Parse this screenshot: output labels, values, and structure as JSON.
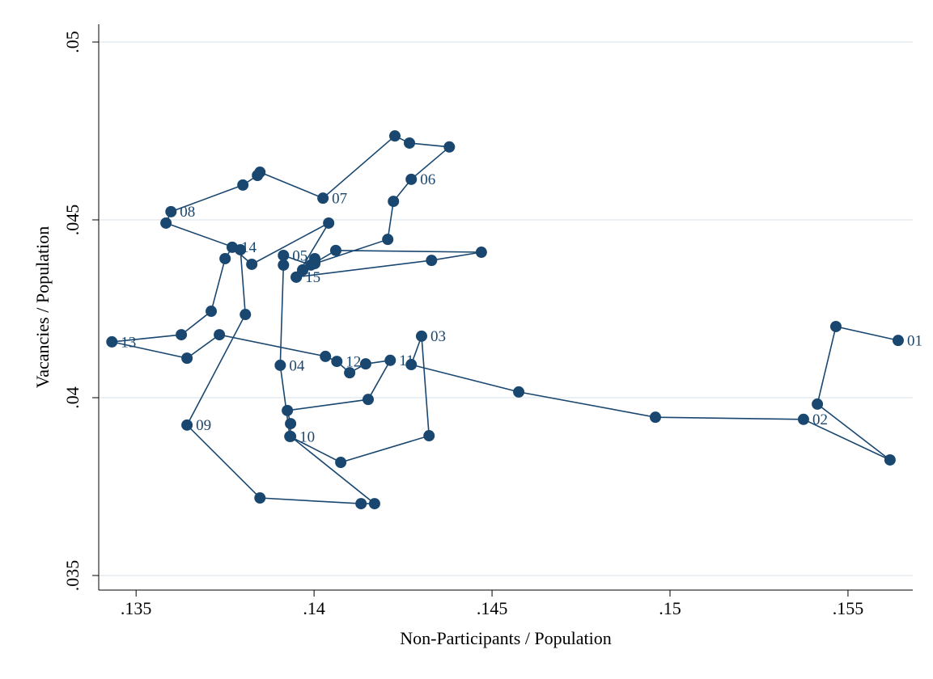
{
  "chart_data": {
    "type": "connected-scatter",
    "x_label": "Non-Participants / Population",
    "y_label": "Vacancies / Population",
    "color": "#1a476f",
    "grid": true,
    "xlim": [
      0.13395,
      0.15682
    ],
    "ylim": [
      0.03459,
      0.0505
    ],
    "xticks": [
      {
        "value": 0.135,
        "label": ".135"
      },
      {
        "value": 0.14,
        "label": ".14"
      },
      {
        "value": 0.145,
        "label": ".145"
      },
      {
        "value": 0.15,
        "label": ".15"
      },
      {
        "value": 0.155,
        "label": ".155"
      }
    ],
    "yticks": [
      {
        "value": 0.035,
        "label": ".035"
      },
      {
        "value": 0.04,
        "label": ".04"
      },
      {
        "value": 0.045,
        "label": ".045"
      },
      {
        "value": 0.05,
        "label": ".05"
      }
    ],
    "x": [
      0.15641,
      0.15466,
      0.15414,
      0.15618,
      0.15375,
      0.14959,
      0.14575,
      0.14273,
      0.14302,
      0.14323,
      0.14075,
      0.13932,
      0.13905,
      0.13914,
      0.13914,
      0.13991,
      0.14061,
      0.1447,
      0.1433,
      0.1395,
      0.13968,
      0.14002,
      0.14002,
      0.14207,
      0.14223,
      0.14273,
      0.1438,
      0.14268,
      0.14227,
      0.14025,
      0.13848,
      0.13841,
      0.138,
      0.13598,
      0.13584,
      0.13793,
      0.13807,
      0.13643,
      0.13848,
      0.14132,
      0.1417,
      0.13934,
      0.13934,
      0.13925,
      0.14152,
      0.14214,
      0.14145,
      0.141,
      0.14064,
      0.14032,
      0.13734,
      0.13643,
      0.13432,
      0.13627,
      0.13711,
      0.1375,
      0.1377,
      0.13825,
      0.14041,
      0.1395,
      0.13968,
      0.14002
    ],
    "values": [
      0.04161,
      0.042,
      0.03982,
      0.03825,
      0.03939,
      0.03945,
      0.04016,
      0.04093,
      0.04173,
      0.03893,
      0.03818,
      0.03891,
      0.04091,
      0.04373,
      0.044,
      0.04373,
      0.04414,
      0.04409,
      0.04386,
      0.04339,
      0.04359,
      0.04391,
      0.04377,
      0.04445,
      0.04552,
      0.04614,
      0.04705,
      0.04716,
      0.04736,
      0.04561,
      0.04634,
      0.04625,
      0.04598,
      0.04523,
      0.04491,
      0.04416,
      0.04234,
      0.03923,
      0.03718,
      0.03702,
      0.03702,
      0.03891,
      0.03927,
      0.03964,
      0.03995,
      0.04105,
      0.04095,
      0.0407,
      0.04102,
      0.04116,
      0.04177,
      0.04111,
      0.04157,
      0.04177,
      0.04243,
      0.04391,
      0.04423,
      0.04375,
      0.04491,
      0.04339,
      0.04359,
      0.04384
    ],
    "point_labels": [
      "01",
      null,
      null,
      null,
      "02",
      null,
      null,
      null,
      "03",
      null,
      null,
      null,
      "04",
      null,
      "05",
      null,
      null,
      null,
      null,
      null,
      null,
      null,
      null,
      null,
      null,
      "06",
      null,
      null,
      null,
      "07",
      null,
      null,
      null,
      "08",
      null,
      null,
      null,
      "09",
      null,
      null,
      null,
      "10",
      null,
      null,
      null,
      "11",
      null,
      null,
      "12",
      null,
      null,
      null,
      "13",
      null,
      null,
      null,
      "14",
      null,
      null,
      "15",
      null,
      null
    ]
  }
}
